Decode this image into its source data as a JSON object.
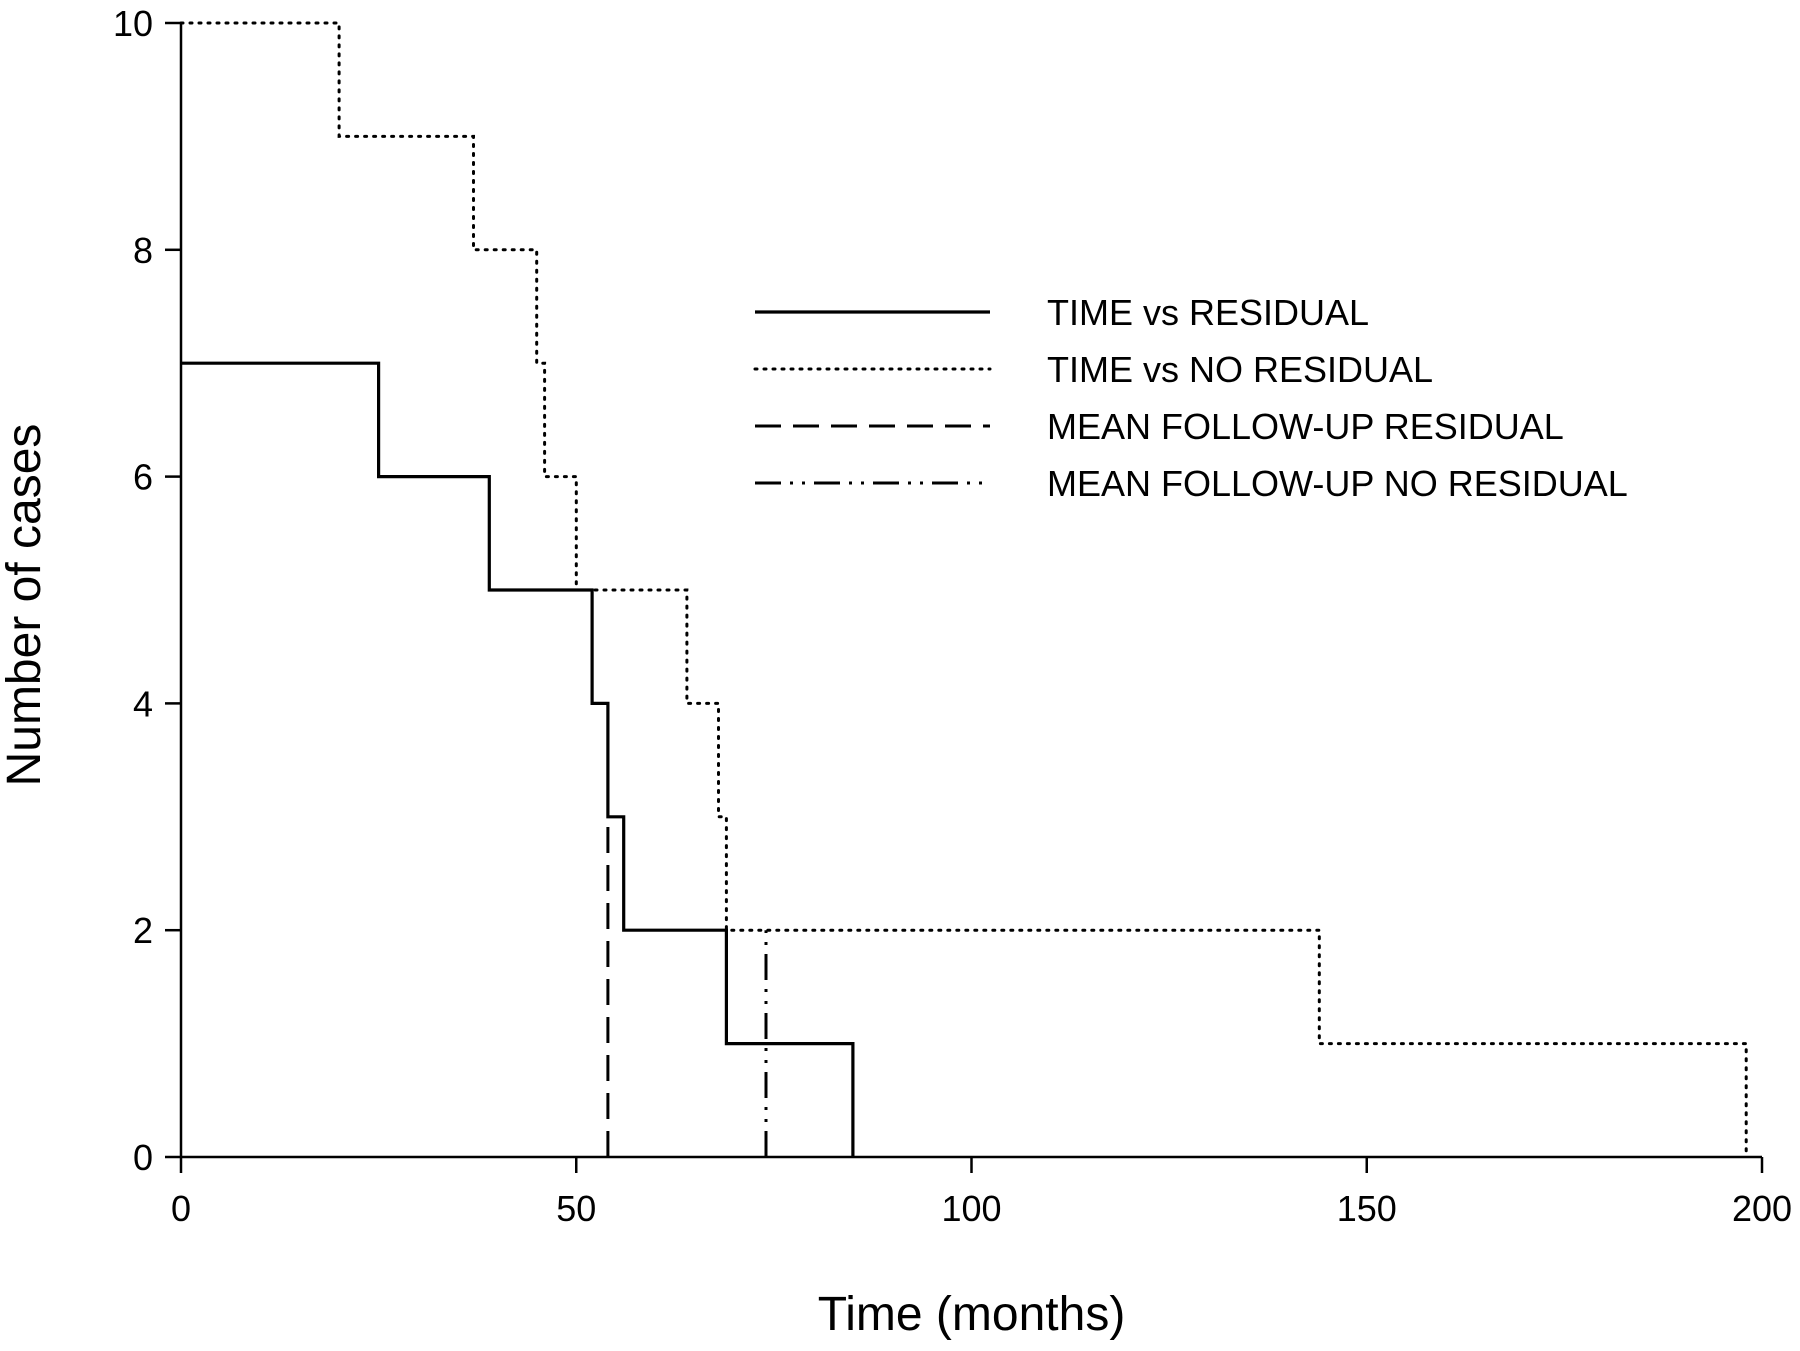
{
  "chart_data": {
    "type": "line",
    "step": true,
    "xlabel": "Time (months)",
    "ylabel": "Number of cases",
    "xlim": [
      0,
      200
    ],
    "ylim": [
      0,
      10
    ],
    "xticks": [
      "0",
      "50",
      "100",
      "150",
      "200"
    ],
    "yticks": [
      "0",
      "2",
      "4",
      "6",
      "8",
      "10"
    ],
    "grid": false,
    "legend_position": "top-right",
    "series": [
      {
        "name": "TIME vs RESIDUAL",
        "style": "solid",
        "points": [
          [
            0,
            7
          ],
          [
            25,
            7
          ],
          [
            25,
            6
          ],
          [
            39,
            6
          ],
          [
            39,
            5
          ],
          [
            52,
            5
          ],
          [
            52,
            4
          ],
          [
            54,
            4
          ],
          [
            54,
            3
          ],
          [
            56,
            3
          ],
          [
            56,
            2
          ],
          [
            69,
            2
          ],
          [
            69,
            1
          ],
          [
            85,
            1
          ],
          [
            85,
            0
          ]
        ]
      },
      {
        "name": "TIME vs NO RESIDUAL",
        "style": "dotted",
        "points": [
          [
            0,
            10
          ],
          [
            20,
            10
          ],
          [
            20,
            9
          ],
          [
            37,
            9
          ],
          [
            37,
            8
          ],
          [
            45,
            8
          ],
          [
            45,
            7
          ],
          [
            46,
            7
          ],
          [
            46,
            6
          ],
          [
            50,
            6
          ],
          [
            50,
            5
          ],
          [
            64,
            5
          ],
          [
            64,
            4
          ],
          [
            68,
            4
          ],
          [
            68,
            3
          ],
          [
            69,
            3
          ],
          [
            69,
            2
          ],
          [
            144,
            2
          ],
          [
            144,
            1
          ],
          [
            198,
            1
          ],
          [
            198,
            0
          ]
        ]
      },
      {
        "name": "MEAN FOLLOW-UP RESIDUAL",
        "style": "dashed",
        "points": [
          [
            54,
            0
          ],
          [
            54,
            3
          ]
        ]
      },
      {
        "name": "MEAN FOLLOW-UP NO RESIDUAL",
        "style": "dashdotdot",
        "points": [
          [
            74,
            0
          ],
          [
            74,
            2
          ]
        ]
      }
    ]
  }
}
